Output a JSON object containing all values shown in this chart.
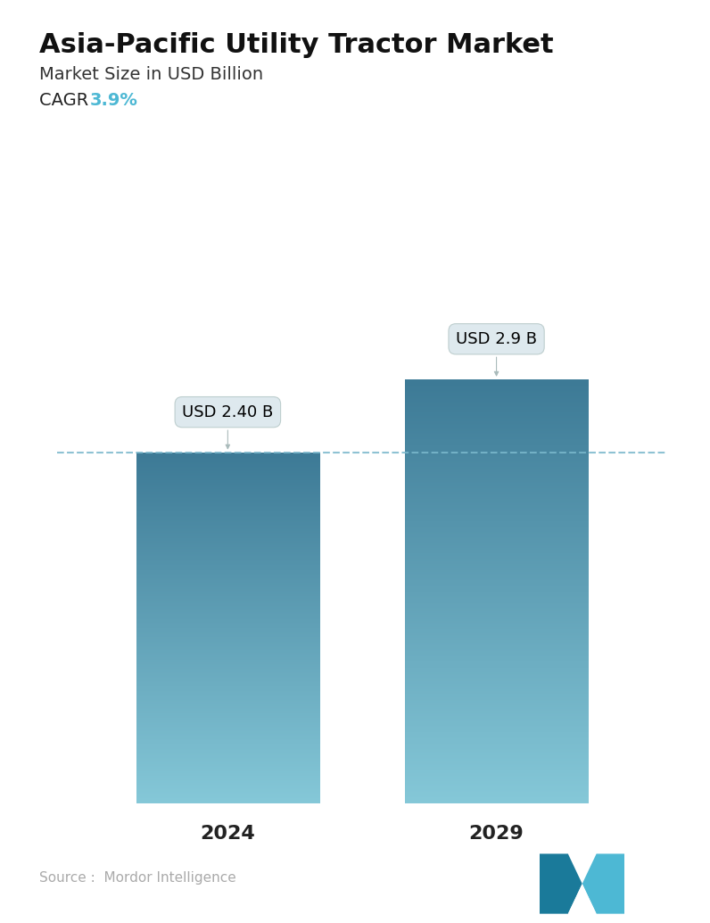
{
  "title": "Asia-Pacific Utility Tractor Market",
  "subtitle": "Market Size in USD Billion",
  "cagr_label": "CAGR ",
  "cagr_value": "3.9%",
  "cagr_color": "#4db8d4",
  "categories": [
    "2024",
    "2029"
  ],
  "values": [
    2.4,
    2.9
  ],
  "bar_labels": [
    "USD 2.40 B",
    "USD 2.9 B"
  ],
  "bar_top_color": "#3d7a96",
  "bar_bottom_color": "#85c8d8",
  "dashed_line_y": 2.4,
  "dashed_line_color": "#7ab8cc",
  "source_text": "Source :  Mordor Intelligence",
  "source_color": "#aaaaaa",
  "background_color": "#ffffff",
  "ylim": [
    0,
    3.6
  ],
  "title_fontsize": 22,
  "subtitle_fontsize": 14,
  "cagr_fontsize": 14,
  "xlabel_fontsize": 16,
  "annotation_fontsize": 13
}
